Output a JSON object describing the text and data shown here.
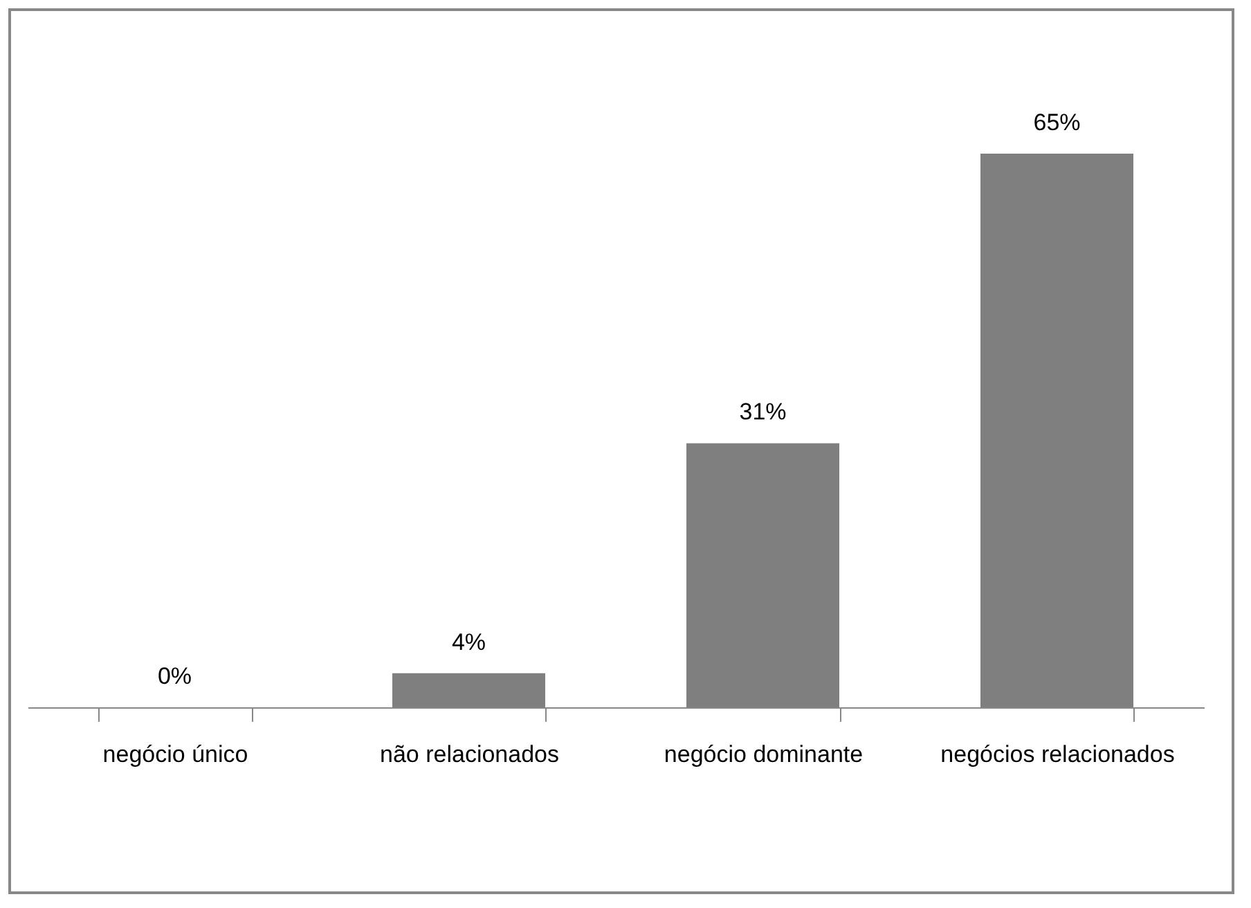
{
  "chart_data": {
    "type": "bar",
    "categories": [
      "negócio único",
      "não relacionados",
      "negócio dominante",
      "negócios relacionados"
    ],
    "values": [
      0,
      4,
      31,
      65
    ],
    "value_labels": [
      "0%",
      "4%",
      "31%",
      "65%"
    ],
    "color": "#7f7f7f"
  }
}
